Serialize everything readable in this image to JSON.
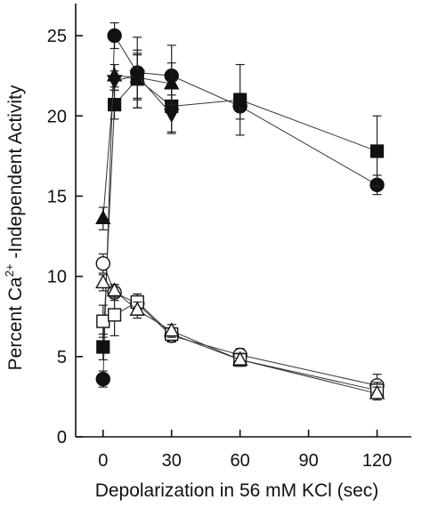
{
  "chart_data": {
    "type": "scatter",
    "title": "",
    "xlabel": "Depolarization in 56 mM  KCl (sec)",
    "ylabel": {
      "prefix": "Percent Ca",
      "superscript": "2+",
      "suffix": " -Independent Activity"
    },
    "xlim": [
      -12,
      135
    ],
    "ylim": [
      0,
      27
    ],
    "x_ticks": [
      0,
      30,
      60,
      90,
      120
    ],
    "y_ticks": [
      0,
      5,
      10,
      15,
      20,
      25
    ],
    "grid": false,
    "series": [
      {
        "marker": "circle",
        "fill": "filled",
        "points": [
          {
            "x": 0,
            "y": 3.6,
            "err": 0.5
          },
          {
            "x": 5,
            "y": 25.0,
            "err": 0.8
          },
          {
            "x": 15,
            "y": 22.7,
            "err": 2.2
          },
          {
            "x": 30,
            "y": 22.5,
            "err": 1.9
          },
          {
            "x": 60,
            "y": 20.6,
            "err": 0.8
          },
          {
            "x": 120,
            "y": 15.7,
            "err": 0.6
          }
        ]
      },
      {
        "marker": "square",
        "fill": "filled",
        "points": [
          {
            "x": 0,
            "y": 5.6,
            "err": 0.8
          },
          {
            "x": 5,
            "y": 20.7,
            "err": 0.9
          },
          {
            "x": 15,
            "y": 22.3,
            "err": 1.8
          },
          {
            "x": 30,
            "y": 20.6,
            "err": 1.6
          },
          {
            "x": 60,
            "y": 21.0,
            "err": 2.2
          },
          {
            "x": 120,
            "y": 17.8,
            "err": 2.2
          }
        ]
      },
      {
        "marker": "triangle-up",
        "fill": "filled",
        "points": [
          {
            "x": 0,
            "y": 13.6,
            "err": 0.7
          },
          {
            "x": 5,
            "y": 22.5,
            "err": 0.7
          },
          {
            "x": 15,
            "y": 22.4,
            "err": 1.4
          },
          {
            "x": 30,
            "y": 22.0,
            "err": 1.3
          }
        ]
      },
      {
        "marker": "triangle-down",
        "fill": "filled",
        "points": [
          {
            "x": 5,
            "y": 22.2,
            "err": 0.6
          },
          {
            "x": 15,
            "y": 22.5,
            "err": 1.4
          },
          {
            "x": 30,
            "y": 20.1,
            "err": 1.2
          }
        ]
      },
      {
        "marker": "circle",
        "fill": "open",
        "points": [
          {
            "x": 0,
            "y": 10.8,
            "err": 0.6
          },
          {
            "x": 5,
            "y": 9.0,
            "err": 0.5
          },
          {
            "x": 15,
            "y": 8.3,
            "err": 0.6
          },
          {
            "x": 30,
            "y": 6.3,
            "err": 0.4
          },
          {
            "x": 60,
            "y": 5.1,
            "err": 0.4
          },
          {
            "x": 120,
            "y": 3.2,
            "err": 0.7
          }
        ]
      },
      {
        "marker": "square",
        "fill": "open",
        "points": [
          {
            "x": 0,
            "y": 7.2,
            "err": 1.0
          },
          {
            "x": 5,
            "y": 7.6,
            "err": 1.3
          },
          {
            "x": 15,
            "y": 8.4,
            "err": 0.5
          },
          {
            "x": 30,
            "y": 6.4,
            "err": 0.4
          },
          {
            "x": 60,
            "y": 4.8,
            "err": 0.4
          },
          {
            "x": 120,
            "y": 2.9,
            "err": 0.5
          }
        ]
      },
      {
        "marker": "triangle-up",
        "fill": "open",
        "points": [
          {
            "x": 0,
            "y": 9.6,
            "err": 0.5
          },
          {
            "x": 5,
            "y": 9.1,
            "err": 0.4
          },
          {
            "x": 15,
            "y": 7.9,
            "err": 0.5
          },
          {
            "x": 30,
            "y": 6.6,
            "err": 0.4
          },
          {
            "x": 60,
            "y": 4.8,
            "err": 0.4
          },
          {
            "x": 120,
            "y": 2.7,
            "err": 0.4
          }
        ]
      }
    ]
  }
}
